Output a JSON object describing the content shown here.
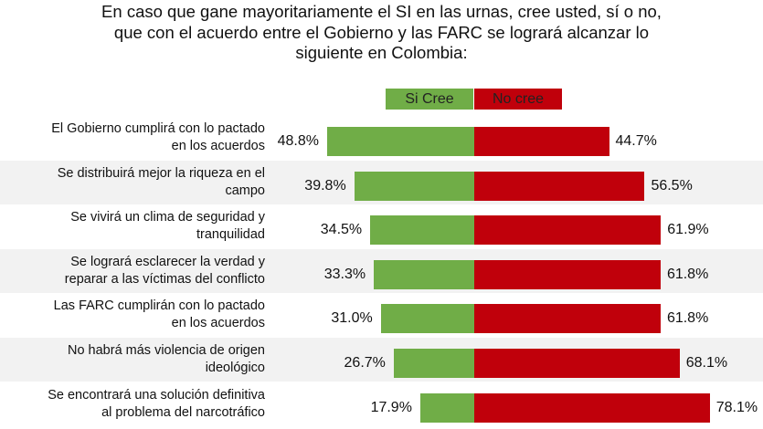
{
  "chart_data": {
    "type": "bar",
    "orientation": "horizontal-diverging",
    "title": "En caso que gane mayoritariamente el SI en las urnas, cree usted, sí o no, que con el acuerdo entre el Gobierno y las FARC se logrará alcanzar lo siguiente en Colombia:",
    "title_lines": [
      "En caso que gane mayoritariamente el SI en las urnas, cree usted, sí o no,",
      "que con el acuerdo entre el Gobierno y las FARC se logrará alcanzar lo",
      "siguiente en Colombia:"
    ],
    "categories": [
      [
        "El Gobierno cumplirá con lo pactado",
        "en los acuerdos"
      ],
      [
        "Se distribuirá mejor la riqueza en el",
        "campo"
      ],
      [
        "Se vivirá un clima de seguridad y",
        "tranquilidad"
      ],
      [
        "Se logrará esclarecer la verdad y",
        "reparar a las víctimas del conflicto"
      ],
      [
        "Las FARC cumplirán con lo pactado",
        "en los acuerdos"
      ],
      [
        "No habrá más violencia de origen",
        "ideológico"
      ],
      [
        "Se encontrará una solución definitiva",
        "al problema del narcotráfico"
      ]
    ],
    "series": [
      {
        "name": "Si Cree",
        "color": "#70ad47",
        "values": [
          48.8,
          39.8,
          34.5,
          33.3,
          31.0,
          26.7,
          17.9
        ],
        "labels": [
          "48.8%",
          "39.8%",
          "34.5%",
          "33.3%",
          "31.0%",
          "26.7%",
          "17.9%"
        ]
      },
      {
        "name": "No cree",
        "color": "#c0000b",
        "values": [
          44.7,
          56.5,
          61.9,
          61.8,
          61.8,
          68.1,
          78.1
        ],
        "labels": [
          "44.7%",
          "56.5%",
          "61.9%",
          "61.8%",
          "61.8%",
          "68.1%",
          "78.1%"
        ]
      }
    ],
    "legend": "top-center",
    "unit": "%",
    "grid": false,
    "row_shading": "#f2f2f2"
  }
}
